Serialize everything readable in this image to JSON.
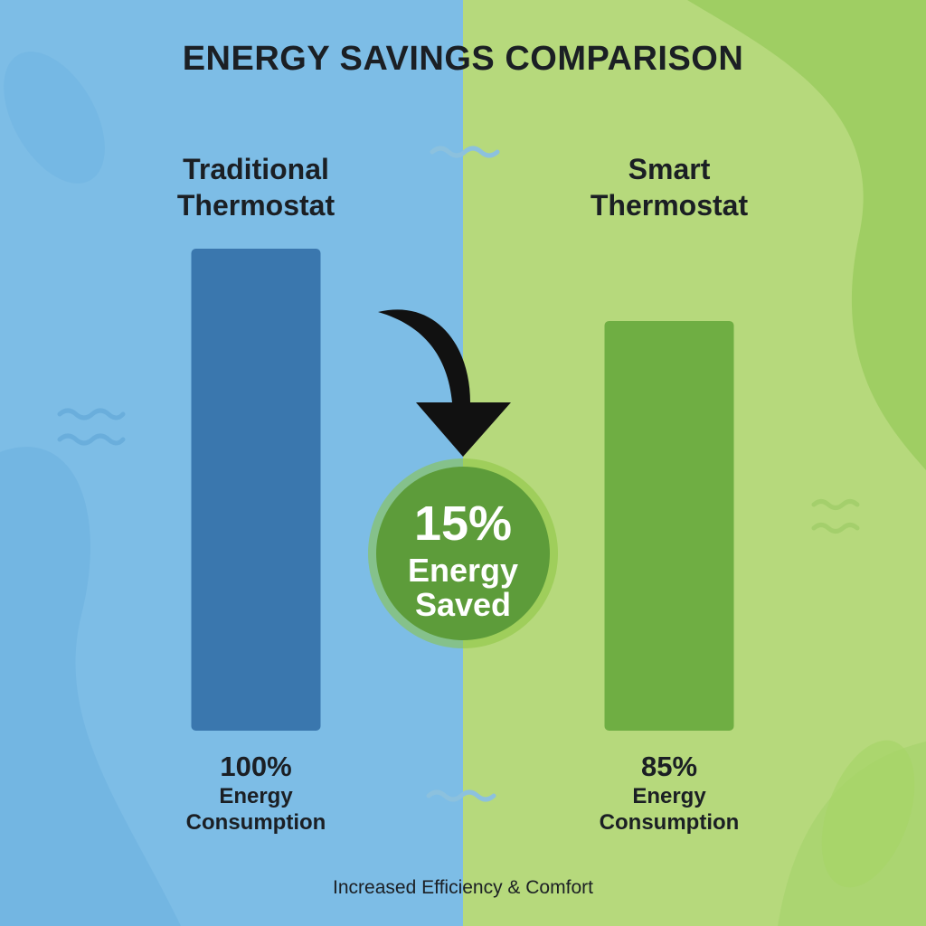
{
  "chart_data": {
    "type": "bar",
    "title": "ENERGY SAVINGS COMPARISON",
    "categories": [
      "Traditional Thermostat",
      "Smart Thermostat"
    ],
    "values": [
      100,
      85
    ],
    "value_labels": [
      "100%",
      "85%"
    ],
    "value_captions": [
      "Energy Consumption",
      "Energy Consumption"
    ],
    "colors": [
      "#3a77ae",
      "#6fae43"
    ],
    "ylim": [
      0,
      100
    ],
    "annotation": [
      "15%",
      "Energy Saved"
    ],
    "footer": "Increased Efficiency & Comfort"
  }
}
